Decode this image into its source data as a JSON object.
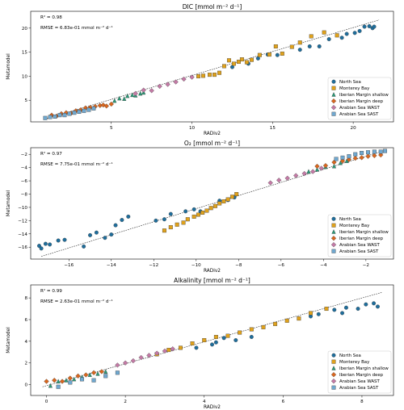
{
  "colors": {
    "North Sea": "#1f6e9c",
    "Monterey Bay": "#e0a21c",
    "Iberian Margin shallow": "#2a9a78",
    "Iberian Margin deep": "#d9671f",
    "Arabian Sea WAST": "#c47aa6",
    "Arabian Sea SAST": "#6fa8d0"
  },
  "markers": {
    "North Sea": "circle",
    "Monterey Bay": "square",
    "Iberian Margin shallow": "triangle",
    "Iberian Margin deep": "diamond",
    "Arabian Sea WAST": "diamond",
    "Arabian Sea SAST": "square"
  },
  "chart_data": [
    {
      "type": "scatter",
      "title": "DIC [mmol m⁻² d⁻¹]",
      "xlabel": "RADiv2",
      "ylabel": "Metamodel",
      "stats": [
        "R² = 0.98",
        "RMSE = 6.83e-01 mmol m⁻² d⁻¹"
      ],
      "xlim": [
        0,
        22.5
      ],
      "ylim": [
        0.5,
        23.5
      ],
      "xticks": [
        5,
        10,
        15,
        20
      ],
      "yticks": [
        5,
        10,
        15,
        20
      ],
      "legend_position": "lower right",
      "fit_line": [
        [
          1,
          1.2
        ],
        [
          21.6,
          21.7
        ]
      ],
      "series": [
        {
          "name": "North Sea",
          "x": [
            17.9,
            18.5,
            19.3,
            19.6,
            20.1,
            20.4,
            20.7,
            21.0,
            21.2,
            21.3,
            14.7,
            15.3,
            16.7,
            17.3,
            12.5,
            13.5,
            14.1
          ],
          "y": [
            16.2,
            17.7,
            18.0,
            18.8,
            19.0,
            19.4,
            20.3,
            20.4,
            20.0,
            20.3,
            14.5,
            14.4,
            15.5,
            16.2,
            11.9,
            12.6,
            13.7
          ]
        },
        {
          "name": "Monterey Bay",
          "x": [
            10.4,
            10.7,
            11.1,
            11.4,
            11.7,
            12.0,
            12.3,
            12.6,
            12.9,
            13.1,
            13.4,
            13.7,
            14.2,
            14.8,
            15.2,
            15.6,
            16.2,
            16.7,
            17.4,
            18.2,
            19.0
          ],
          "y": [
            10.0,
            10.1,
            10.3,
            10.3,
            10.7,
            12.1,
            13.3,
            12.6,
            13.0,
            13.5,
            12.9,
            13.4,
            14.4,
            14.5,
            16.2,
            14.7,
            16.1,
            17.0,
            18.3,
            19.1,
            18.5
          ]
        },
        {
          "name": "Iberian Margin shallow",
          "x": [
            5.2,
            5.5,
            5.8,
            6.0,
            6.3,
            6.5,
            6.8,
            7.0
          ],
          "y": [
            4.9,
            5.4,
            5.3,
            5.9,
            6.1,
            6.0,
            6.4,
            6.6
          ]
        },
        {
          "name": "Iberian Margin deep",
          "x": [
            1.3,
            1.6,
            1.9,
            2.2,
            2.5,
            2.8,
            3.1,
            3.4,
            3.7,
            4.0,
            4.3,
            4.5,
            4.7,
            5.0
          ],
          "y": [
            1.9,
            1.7,
            2.2,
            2.4,
            2.3,
            2.8,
            3.0,
            3.4,
            3.5,
            3.7,
            3.9,
            4.0,
            3.8,
            4.2
          ]
        },
        {
          "name": "Arabian Sea WAST",
          "x": [
            6.5,
            7.0,
            7.5,
            8.0,
            8.5,
            9.0,
            9.5,
            10.0
          ],
          "y": [
            6.4,
            7.1,
            7.0,
            7.9,
            8.3,
            8.8,
            9.4,
            9.8
          ]
        },
        {
          "name": "Arabian Sea SAST",
          "x": [
            0.9,
            1.2,
            1.5,
            1.8,
            2.1,
            2.4,
            2.7,
            3.0,
            3.3,
            3.6,
            3.9
          ],
          "y": [
            1.3,
            1.5,
            1.6,
            1.9,
            1.9,
            2.2,
            2.4,
            2.6,
            2.8,
            3.0,
            3.3
          ]
        }
      ]
    },
    {
      "type": "scatter",
      "title": "O₂ [mmol m⁻² d⁻¹]",
      "xlabel": "RADiv2",
      "ylabel": "Metamodel",
      "stats": [
        "R² = 0.97",
        "RMSE = 7.75e-01 mmol m⁻² d⁻¹"
      ],
      "xlim": [
        -17.8,
        -0.7
      ],
      "ylim": [
        -17.8,
        -1.0
      ],
      "xticks": [
        -16,
        -14,
        -12,
        -10,
        -8,
        -6,
        -4,
        -2
      ],
      "yticks": [
        -16,
        -14,
        -12,
        -10,
        -8,
        -6,
        -4,
        -2
      ],
      "legend_position": "lower right",
      "fit_line": [
        [
          -17.3,
          -17.4
        ],
        [
          -1.2,
          -1.5
        ]
      ],
      "series": [
        {
          "name": "North Sea",
          "x": [
            -17.4,
            -17.3,
            -17.1,
            -16.9,
            -16.5,
            -16.2,
            -15.3,
            -15.0,
            -14.7,
            -14.3,
            -14.0,
            -13.8,
            -13.5,
            -13.2,
            -11.9,
            -11.5,
            -11.2,
            -10.5,
            -10.1,
            -9.8,
            -8.9,
            -8.5,
            -8.2
          ],
          "y": [
            -15.8,
            -16.2,
            -15.5,
            -15.6,
            -15.0,
            -14.9,
            -15.9,
            -14.2,
            -13.8,
            -14.6,
            -14.1,
            -12.7,
            -11.9,
            -11.4,
            -12.0,
            -11.8,
            -11.0,
            -10.6,
            -10.3,
            -10.6,
            -9.0,
            -8.9,
            -8.5
          ]
        },
        {
          "name": "Monterey Bay",
          "x": [
            -11.5,
            -11.2,
            -10.9,
            -10.6,
            -10.4,
            -10.1,
            -9.9,
            -9.7,
            -9.5,
            -9.3,
            -9.1,
            -8.9,
            -8.7,
            -8.5,
            -8.3,
            -8.1
          ],
          "y": [
            -13.5,
            -13.0,
            -12.6,
            -12.3,
            -11.8,
            -11.4,
            -11.1,
            -10.8,
            -10.5,
            -10.1,
            -9.8,
            -9.4,
            -9.1,
            -8.8,
            -8.4,
            -8.0
          ]
        },
        {
          "name": "Iberian Margin shallow",
          "x": [
            -4.7,
            -4.3,
            -3.9,
            -3.5,
            -3.2,
            -2.9
          ],
          "y": [
            -4.6,
            -4.3,
            -3.9,
            -3.8,
            -3.3,
            -3.0
          ]
        },
        {
          "name": "Iberian Margin deep",
          "x": [
            -4.3,
            -3.9,
            -3.5,
            -3.1,
            -2.8,
            -2.5,
            -2.2,
            -1.9,
            -1.6,
            -1.3
          ],
          "y": [
            -3.8,
            -3.7,
            -3.2,
            -3.0,
            -2.8,
            -2.6,
            -2.5,
            -2.3,
            -2.2,
            -2.1
          ]
        },
        {
          "name": "Arabian Sea WAST",
          "x": [
            -6.5,
            -6.1,
            -5.7,
            -5.3,
            -4.9,
            -4.5,
            -4.1
          ],
          "y": [
            -6.3,
            -5.9,
            -5.6,
            -5.2,
            -4.9,
            -4.6,
            -4.1
          ]
        },
        {
          "name": "Arabian Sea SAST",
          "x": [
            -3.4,
            -3.1,
            -2.8,
            -2.5,
            -2.2,
            -1.9,
            -1.6,
            -1.3,
            -1.1
          ],
          "y": [
            -2.7,
            -2.5,
            -2.3,
            -2.0,
            -1.8,
            -1.7,
            -1.6,
            -1.6,
            -1.5
          ]
        }
      ]
    },
    {
      "type": "scatter",
      "title": "Alkalinity [mmol m⁻² d⁻¹]",
      "xlabel": "RADiv2",
      "ylabel": "Metamodel",
      "stats": [
        "R² = 0.99",
        "RMSE = 2.63e-01 mmol m⁻² d⁻¹"
      ],
      "xlim": [
        -0.4,
        8.8
      ],
      "ylim": [
        -1.0,
        9.2
      ],
      "xticks": [
        0,
        2,
        4,
        6,
        8
      ],
      "yticks": [
        0,
        2,
        4,
        6,
        8
      ],
      "legend_position": "lower right",
      "fit_line": [
        [
          -0.1,
          -0.2
        ],
        [
          8.5,
          8.5
        ]
      ],
      "series": [
        {
          "name": "North Sea",
          "x": [
            8.1,
            8.3,
            8.4,
            7.9,
            7.6,
            7.3,
            7.5,
            6.7,
            6.9,
            5.2,
            4.8,
            4.5,
            4.3,
            3.8,
            4.2
          ],
          "y": [
            7.4,
            7.5,
            7.2,
            7.0,
            7.1,
            6.9,
            6.6,
            6.3,
            6.5,
            4.4,
            4.1,
            4.3,
            3.9,
            3.4,
            3.7
          ]
        },
        {
          "name": "Monterey Bay",
          "x": [
            2.8,
            3.1,
            3.4,
            3.7,
            4.0,
            4.3,
            4.6,
            4.9,
            5.2,
            5.5,
            5.8,
            6.1,
            6.4,
            6.7,
            7.1
          ],
          "y": [
            2.8,
            3.2,
            3.4,
            3.8,
            4.1,
            4.4,
            4.5,
            4.8,
            5.1,
            5.3,
            5.6,
            5.9,
            6.1,
            6.6,
            7.0
          ]
        },
        {
          "name": "Iberian Margin shallow",
          "x": [
            0.1,
            0.3,
            0.5,
            0.7,
            0.9,
            1.1,
            1.3,
            1.5
          ],
          "y": [
            -0.1,
            0.3,
            0.4,
            0.5,
            0.7,
            0.9,
            1.0,
            1.2
          ]
        },
        {
          "name": "Iberian Margin deep",
          "x": [
            0.0,
            0.2,
            0.4,
            0.6,
            0.8,
            1.0,
            1.2,
            1.4
          ],
          "y": [
            0.3,
            0.4,
            0.3,
            0.6,
            0.8,
            0.9,
            1.1,
            1.2
          ]
        },
        {
          "name": "Arabian Sea WAST",
          "x": [
            1.8,
            2.0,
            2.2,
            2.4,
            2.6,
            2.8,
            3.0,
            3.2
          ],
          "y": [
            1.8,
            2.0,
            2.2,
            2.5,
            2.7,
            2.9,
            3.1,
            3.3
          ]
        },
        {
          "name": "Arabian Sea SAST",
          "x": [
            0.3,
            0.6,
            0.9,
            1.2,
            1.5,
            1.8
          ],
          "y": [
            -0.2,
            0.2,
            0.5,
            0.4,
            0.8,
            1.1
          ]
        }
      ]
    }
  ]
}
